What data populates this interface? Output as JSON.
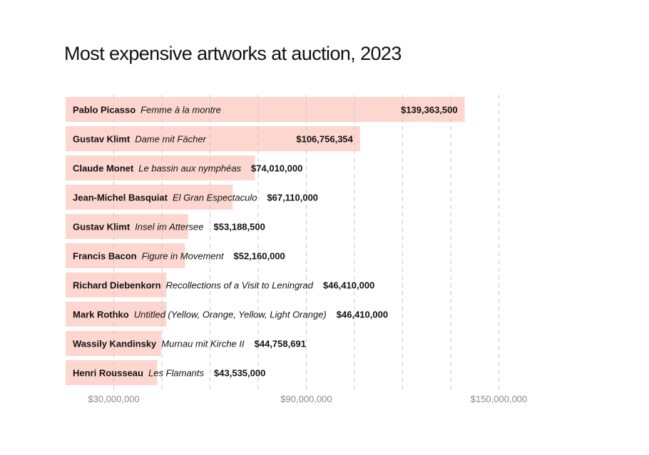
{
  "chart_data": {
    "type": "bar",
    "orientation": "horizontal",
    "title": "Most expensive artworks at auction, 2023",
    "xlabel": "",
    "ylabel": "",
    "xlim": [
      15000000,
      165000000
    ],
    "grid": true,
    "bar_color": "#fdd7cf",
    "grid_color": "#c8c8c8",
    "tick_color": "#8a8a8a",
    "ticks": [
      {
        "value": 30000000,
        "label": "$30,000,000"
      },
      {
        "value": 90000000,
        "label": "$90,000,000"
      },
      {
        "value": 150000000,
        "label": "$150,000,000"
      }
    ],
    "gridlines": [
      30000000,
      45000000,
      60000000,
      75000000,
      90000000,
      105000000,
      120000000,
      135000000,
      150000000
    ],
    "items": [
      {
        "artist": "Pablo Picasso",
        "work": "Femme à la montre",
        "value": 139363500,
        "label": "$139,363,500"
      },
      {
        "artist": "Gustav Klimt",
        "work": "Dame mit Fächer",
        "value": 106756354,
        "label": "$106,756,354"
      },
      {
        "artist": "Claude Monet",
        "work": "Le bassin aux nymphéas",
        "value": 74010000,
        "label": "$74,010,000"
      },
      {
        "artist": "Jean-Michel Basquiat",
        "work": "El Gran Espectaculo",
        "value": 67110000,
        "label": "$67,110,000"
      },
      {
        "artist": "Gustav Klimt",
        "work": "Insel im Attersee",
        "value": 53188500,
        "label": "$53,188,500"
      },
      {
        "artist": "Francis Bacon",
        "work": "Figure in Movement",
        "value": 52160000,
        "label": "$52,160,000"
      },
      {
        "artist": "Richard Diebenkorn",
        "work": "Recollections of a Visit to Leningrad",
        "value": 46410000,
        "label": "$46,410,000"
      },
      {
        "artist": "Mark Rothko",
        "work": "Untitled (Yellow, Orange, Yellow, Light Orange)",
        "value": 46410000,
        "label": "$46,410,000"
      },
      {
        "artist": "Wassily Kandinsky",
        "work": "Murnau mit Kirche II",
        "value": 44758691,
        "label": "$44,758,691"
      },
      {
        "artist": "Henri Rousseau",
        "work": "Les Flamants",
        "value": 43535000,
        "label": "$43,535,000"
      }
    ]
  }
}
